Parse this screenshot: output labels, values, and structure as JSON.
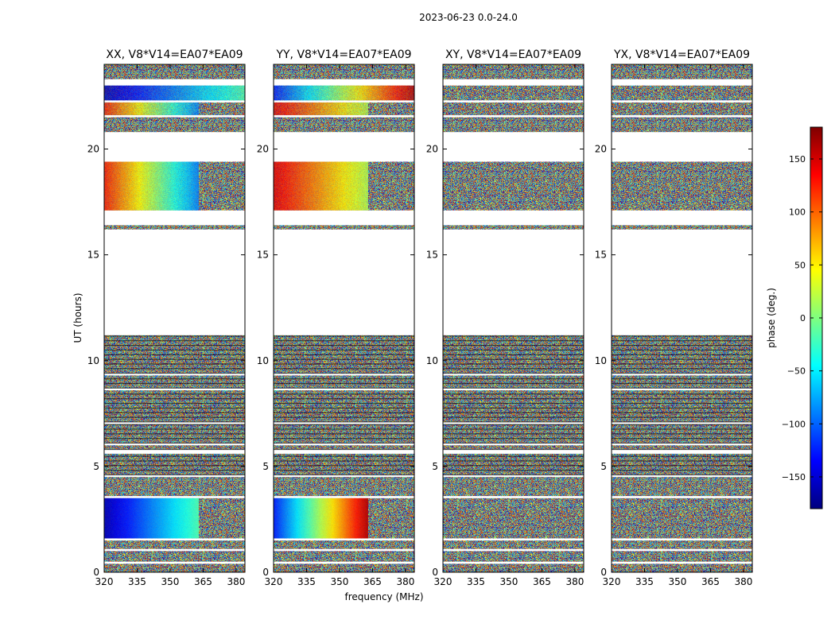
{
  "page_title": "2023-06-23 0.0-24.0",
  "xlabel": "frequency (MHz)",
  "ylabel": "UT (hours)",
  "chart_data": {
    "type": "heatmap",
    "title": "2023-06-23 0.0-24.0",
    "xlabel": "frequency (MHz)",
    "ylabel": "UT (hours)",
    "xlim": [
      320,
      384
    ],
    "ylim": [
      0,
      24
    ],
    "x_ticks": [
      320,
      335,
      350,
      365,
      380
    ],
    "y_ticks": [
      0,
      5,
      10,
      15,
      20
    ],
    "panels": [
      {
        "title": "XX, V8*V14=EA07*EA09",
        "polarization": "XX"
      },
      {
        "title": "YY, V8*V14=EA07*EA09",
        "polarization": "YY"
      },
      {
        "title": "XY, V8*V14=EA07*EA09",
        "polarization": "XY"
      },
      {
        "title": "YX, V8*V14=EA07*EA09",
        "polarization": "YX"
      }
    ],
    "colorbar": {
      "label": "phase (deg.)",
      "range": [
        -180,
        180
      ],
      "ticks": [
        -150,
        -100,
        -50,
        0,
        50,
        100,
        150
      ],
      "colormap": "jet"
    },
    "data_segments_ut_hours": [
      [
        0.0,
        0.4
      ],
      [
        0.5,
        1.0
      ],
      [
        1.1,
        1.5
      ],
      [
        1.6,
        3.5
      ],
      [
        3.6,
        4.5
      ],
      [
        4.6,
        5.6
      ],
      [
        5.8,
        6.0
      ],
      [
        6.1,
        7.0
      ],
      [
        7.1,
        8.6
      ],
      [
        8.7,
        9.3
      ],
      [
        9.4,
        11.2
      ],
      [
        16.2,
        16.4
      ],
      [
        17.1,
        19.4
      ],
      [
        20.8,
        21.5
      ],
      [
        21.6,
        22.2
      ],
      [
        22.3,
        23.0
      ],
      [
        23.3,
        24.0
      ]
    ]
  },
  "colors": {
    "background": "#ffffff",
    "axis": "#000000",
    "colormap_stops": [
      "#00007f",
      "#0000ff",
      "#007fff",
      "#00ffff",
      "#7fff7f",
      "#ffff00",
      "#ff7f00",
      "#ff0000",
      "#7f0000"
    ]
  }
}
